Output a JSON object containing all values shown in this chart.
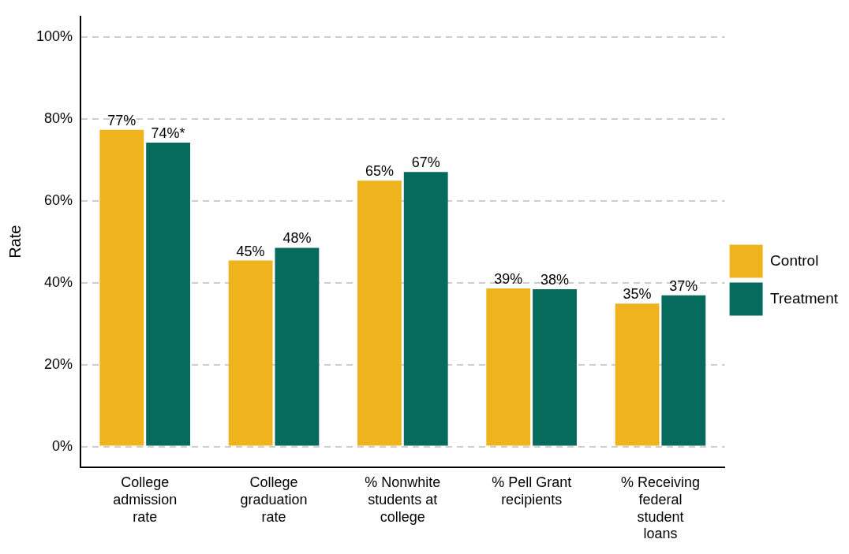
{
  "chart_data": {
    "type": "bar",
    "ylabel": "Rate",
    "categories": [
      "College admission rate",
      "College graduation rate",
      "% Nonwhite students at college",
      "% Pell Grant recipients",
      "% Receiving federal student loans"
    ],
    "series": [
      {
        "name": "Control",
        "color": "#efb31d",
        "values": [
          77.3,
          45.4,
          64.9,
          38.6,
          34.9
        ],
        "value_labels": [
          "77%",
          "45%",
          "65%",
          "39%",
          "35%"
        ]
      },
      {
        "name": "Treatment",
        "color": "#066b5c",
        "values": [
          74.2,
          48.5,
          67.0,
          38.4,
          36.9
        ],
        "value_labels": [
          "74%*",
          "48%",
          "67%",
          "38%",
          "37%"
        ]
      }
    ],
    "ylim": [
      -5,
      105
    ],
    "yticks": [
      {
        "value": 0,
        "label": "0%"
      },
      {
        "value": 20,
        "label": "20%"
      },
      {
        "value": 40,
        "label": "40%"
      },
      {
        "value": 60,
        "label": "60%"
      },
      {
        "value": 80,
        "label": "80%"
      },
      {
        "value": 100,
        "label": "100%"
      }
    ],
    "grid": "y",
    "legend": "right"
  }
}
